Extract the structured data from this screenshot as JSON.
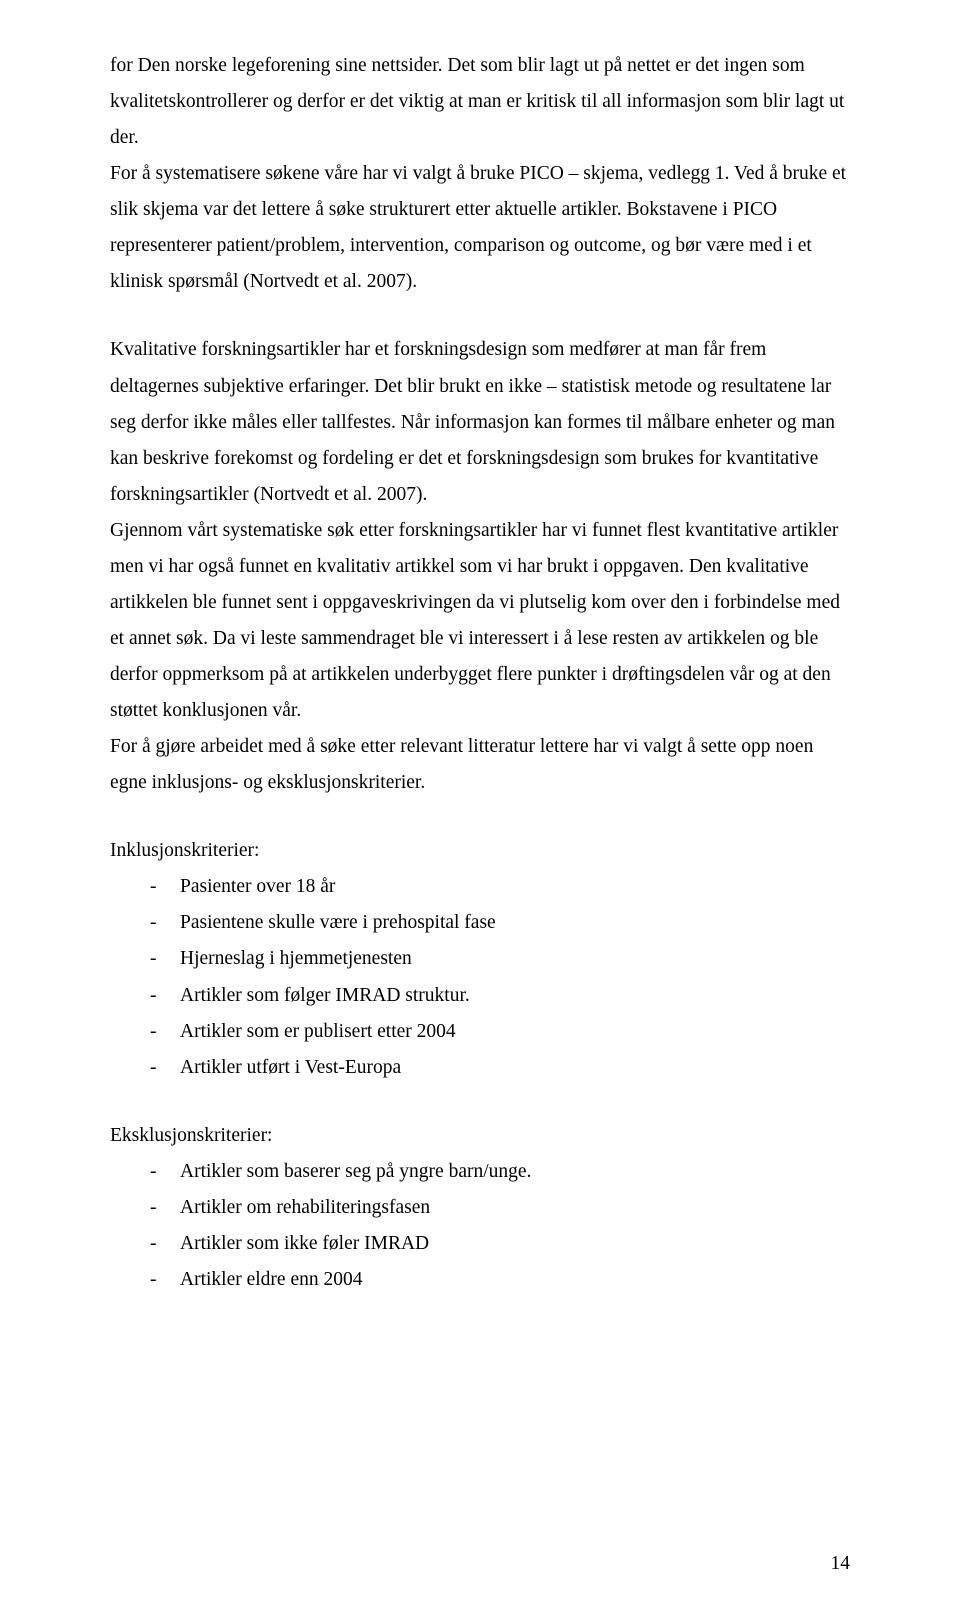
{
  "paragraphs": {
    "p1": "for Den norske legeforening sine nettsider. Det som blir lagt ut på nettet er det ingen som kvalitetskontrollerer og derfor er det viktig at man er kritisk til all informasjon som blir lagt ut der.",
    "p2": "For å systematisere søkene våre har vi valgt å bruke PICO – skjema, vedlegg 1. Ved å bruke et slik skjema var det lettere å søke strukturert etter aktuelle artikler. Bokstavene i PICO representerer patient/problem, intervention, comparison og outcome, og bør være med i et klinisk spørsmål (Nortvedt et al. 2007).",
    "p3": "Kvalitative forskningsartikler har et forskningsdesign som medfører at man får frem deltagernes subjektive erfaringer. Det blir brukt en ikke – statistisk metode og resultatene lar seg derfor ikke måles eller tallfestes. Når informasjon kan formes til målbare enheter og man kan beskrive forekomst og fordeling er det et forskningsdesign som brukes for kvantitative forskningsartikler (Nortvedt et al. 2007).",
    "p4": "Gjennom vårt systematiske søk etter forskningsartikler har vi funnet flest kvantitative artikler men vi har også funnet en kvalitativ artikkel som vi har brukt i oppgaven. Den kvalitative artikkelen ble funnet sent i oppgaveskrivingen da vi plutselig kom over den i forbindelse med et annet søk. Da vi leste sammendraget ble vi interessert i å lese resten av artikkelen og ble derfor oppmerksom på at artikkelen underbygget flere punkter i drøftingsdelen vår og at den støttet konklusjonen vår.",
    "p5": "For å gjøre arbeidet med å søke etter relevant litteratur lettere har vi valgt å sette opp noen egne inklusjons- og eksklusjonskriterier.",
    "inklusjon_heading": "Inklusjonskriterier:",
    "eksklusjon_heading": "Eksklusjonskriterier:"
  },
  "inklusjon": [
    "Pasienter over 18 år",
    "Pasientene skulle være i prehospital fase",
    "Hjerneslag i hjemmetjenesten",
    "Artikler som følger IMRAD struktur.",
    "Artikler som er publisert etter 2004",
    "Artikler utført i Vest-Europa"
  ],
  "eksklusjon": [
    "Artikler som baserer seg på yngre barn/unge.",
    "Artikler om rehabiliteringsfasen",
    "Artikler som ikke føler IMRAD",
    "Artikler eldre enn 2004"
  ],
  "page_number": "14",
  "bullet_char": "-"
}
